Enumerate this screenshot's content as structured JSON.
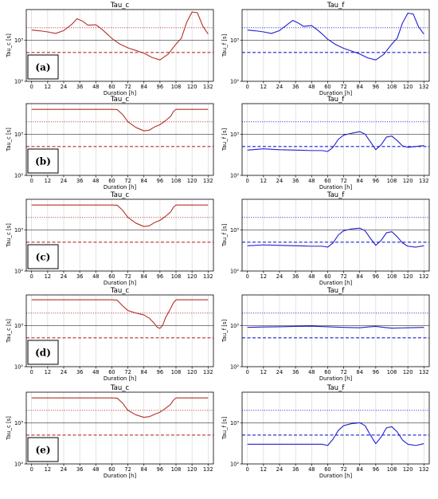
{
  "colors": {
    "tau_c": "#b5312a",
    "tau_f": "#1f1fd0",
    "grid": "#d0d0d0",
    "refline": "#000000"
  },
  "chart_data": [
    {
      "panel_label": "(a)",
      "title": "Tau_c",
      "type": "line",
      "xlabel": "Duration [h]",
      "ylabel": "Tau_c [s]",
      "xlim": [
        -4,
        136
      ],
      "ylim": [
        100,
        5500
      ],
      "y_scale": "log",
      "x_ticks": [
        0,
        12,
        24,
        36,
        48,
        60,
        72,
        84,
        96,
        108,
        120,
        132
      ],
      "y_ticks": [
        {
          "value": 100,
          "label": "10²"
        },
        {
          "value": 1000,
          "label": "10³"
        }
      ],
      "hlines": [
        {
          "value": 2000,
          "style": "dotted"
        },
        {
          "value": 500,
          "style": "dashed"
        },
        {
          "value": 1000,
          "style": "solid-thin"
        }
      ],
      "series": [
        {
          "x": [
            0,
            6,
            12,
            18,
            24,
            30,
            34,
            38,
            42,
            48,
            52,
            56,
            60,
            66,
            72,
            78,
            84,
            90,
            96,
            102,
            108,
            112,
            116,
            120,
            124,
            128,
            132
          ],
          "y": [
            1750,
            1680,
            1580,
            1450,
            1700,
            2400,
            3300,
            2900,
            2300,
            2350,
            1900,
            1450,
            1100,
            800,
            650,
            560,
            480,
            380,
            330,
            450,
            800,
            1100,
            2700,
            4800,
            4600,
            2200,
            1400
          ]
        }
      ]
    },
    {
      "panel_label": "",
      "title": "Tau_f",
      "type": "line",
      "xlabel": "Duration [h]",
      "ylabel": "Tau_f [s]",
      "xlim": [
        -4,
        136
      ],
      "ylim": [
        100,
        5500
      ],
      "y_scale": "log",
      "x_ticks": [
        0,
        12,
        24,
        36,
        48,
        60,
        72,
        84,
        96,
        108,
        120,
        132
      ],
      "y_ticks": [
        {
          "value": 100,
          "label": "10²"
        },
        {
          "value": 1000,
          "label": "10³"
        }
      ],
      "hlines": [
        {
          "value": 2000,
          "style": "dotted"
        },
        {
          "value": 500,
          "style": "dashed"
        },
        {
          "value": 1000,
          "style": "solid-thin"
        }
      ],
      "series": [
        {
          "x": [
            0,
            6,
            12,
            18,
            24,
            30,
            34,
            38,
            42,
            48,
            52,
            56,
            60,
            66,
            72,
            78,
            84,
            90,
            96,
            102,
            108,
            112,
            116,
            120,
            124,
            128,
            132
          ],
          "y": [
            1750,
            1680,
            1580,
            1450,
            1700,
            2400,
            3000,
            2600,
            2150,
            2250,
            1800,
            1400,
            1050,
            780,
            630,
            540,
            460,
            370,
            330,
            450,
            800,
            1100,
            2600,
            4500,
            4300,
            2100,
            1400
          ]
        }
      ]
    },
    {
      "panel_label": "(b)",
      "title": "Tau_c",
      "type": "line",
      "xlabel": "Duration [h]",
      "ylabel": "Tau_c [s]",
      "xlim": [
        -4,
        136
      ],
      "ylim": [
        100,
        5500
      ],
      "y_scale": "log",
      "x_ticks": [
        0,
        12,
        24,
        36,
        48,
        60,
        72,
        84,
        96,
        108,
        120,
        132
      ],
      "y_ticks": [
        {
          "value": 100,
          "label": "10²"
        },
        {
          "value": 1000,
          "label": "10³"
        }
      ],
      "hlines": [
        {
          "value": 2000,
          "style": "dotted"
        },
        {
          "value": 500,
          "style": "dashed"
        },
        {
          "value": 1000,
          "style": "solid-thin"
        }
      ],
      "series": [
        {
          "x": [
            0,
            30,
            60,
            64,
            68,
            72,
            78,
            84,
            88,
            92,
            96,
            100,
            104,
            106,
            108,
            120,
            132
          ],
          "y": [
            4000,
            4000,
            4000,
            3950,
            3000,
            2000,
            1450,
            1200,
            1250,
            1500,
            1700,
            2100,
            2700,
            3500,
            4000,
            4000,
            4000
          ]
        }
      ]
    },
    {
      "panel_label": "",
      "title": "Tau_f",
      "type": "line",
      "xlabel": "Duration [h]",
      "ylabel": "Tau_f [s]",
      "xlim": [
        -4,
        136
      ],
      "ylim": [
        100,
        5500
      ],
      "y_scale": "log",
      "x_ticks": [
        0,
        12,
        24,
        36,
        48,
        60,
        72,
        84,
        96,
        108,
        120,
        132
      ],
      "y_ticks": [
        {
          "value": 100,
          "label": "10²"
        },
        {
          "value": 1000,
          "label": "10³"
        }
      ],
      "hlines": [
        {
          "value": 2000,
          "style": "dotted"
        },
        {
          "value": 500,
          "style": "dashed"
        },
        {
          "value": 1000,
          "style": "solid-thin"
        }
      ],
      "series": [
        {
          "x": [
            0,
            12,
            24,
            36,
            48,
            56,
            60,
            64,
            68,
            72,
            78,
            84,
            88,
            92,
            96,
            100,
            104,
            108,
            112,
            116,
            120,
            126,
            132
          ],
          "y": [
            410,
            440,
            420,
            410,
            400,
            400,
            380,
            480,
            750,
            950,
            1050,
            1150,
            1000,
            650,
            420,
            550,
            850,
            900,
            700,
            520,
            480,
            500,
            530
          ]
        }
      ]
    },
    {
      "panel_label": "(c)",
      "title": "Tau_c",
      "type": "line",
      "xlabel": "Duration [h]",
      "ylabel": "Tau_c [s]",
      "xlim": [
        -4,
        136
      ],
      "ylim": [
        100,
        5500
      ],
      "y_scale": "log",
      "x_ticks": [
        0,
        12,
        24,
        36,
        48,
        60,
        72,
        84,
        96,
        108,
        120,
        132
      ],
      "y_ticks": [
        {
          "value": 100,
          "label": "10²"
        },
        {
          "value": 1000,
          "label": "10³"
        }
      ],
      "hlines": [
        {
          "value": 2000,
          "style": "dotted"
        },
        {
          "value": 500,
          "style": "dashed"
        },
        {
          "value": 1000,
          "style": "solid-thin"
        }
      ],
      "series": [
        {
          "x": [
            0,
            30,
            60,
            64,
            68,
            72,
            78,
            84,
            88,
            92,
            96,
            100,
            104,
            106,
            108,
            120,
            132
          ],
          "y": [
            4000,
            4000,
            4000,
            3950,
            3000,
            2000,
            1450,
            1200,
            1250,
            1500,
            1700,
            2100,
            2700,
            3500,
            4000,
            4000,
            4000
          ]
        }
      ]
    },
    {
      "panel_label": "",
      "title": "Tau_f",
      "type": "line",
      "xlabel": "Duration [h]",
      "ylabel": "Tau_f [s]",
      "xlim": [
        -4,
        136
      ],
      "ylim": [
        100,
        5500
      ],
      "y_scale": "log",
      "x_ticks": [
        0,
        12,
        24,
        36,
        48,
        60,
        72,
        84,
        96,
        108,
        120,
        132
      ],
      "y_ticks": [
        {
          "value": 100,
          "label": "10²"
        },
        {
          "value": 1000,
          "label": "10³"
        }
      ],
      "hlines": [
        {
          "value": 2000,
          "style": "dotted"
        },
        {
          "value": 500,
          "style": "dashed"
        },
        {
          "value": 1000,
          "style": "solid-thin"
        }
      ],
      "series": [
        {
          "x": [
            0,
            12,
            24,
            36,
            48,
            56,
            60,
            64,
            68,
            72,
            78,
            84,
            88,
            92,
            96,
            100,
            104,
            108,
            112,
            116,
            120,
            126,
            132
          ],
          "y": [
            410,
            430,
            420,
            410,
            400,
            400,
            380,
            480,
            750,
            950,
            1050,
            1100,
            950,
            620,
            420,
            550,
            850,
            900,
            680,
            480,
            400,
            380,
            410
          ]
        }
      ]
    },
    {
      "panel_label": "(d)",
      "title": "Tau_c",
      "type": "line",
      "xlabel": "Duration [h]",
      "ylabel": "Tau_c [s]",
      "xlim": [
        -4,
        136
      ],
      "ylim": [
        100,
        5500
      ],
      "y_scale": "log",
      "x_ticks": [
        0,
        12,
        24,
        36,
        48,
        60,
        72,
        84,
        96,
        108,
        120,
        132
      ],
      "y_ticks": [
        {
          "value": 100,
          "label": "10²"
        },
        {
          "value": 1000,
          "label": "10³"
        }
      ],
      "hlines": [
        {
          "value": 2000,
          "style": "dotted"
        },
        {
          "value": 500,
          "style": "dashed"
        },
        {
          "value": 1000,
          "style": "solid-thin"
        }
      ],
      "series": [
        {
          "x": [
            0,
            30,
            60,
            64,
            68,
            72,
            78,
            84,
            88,
            92,
            94,
            96,
            98,
            100,
            104,
            106,
            108,
            120,
            132
          ],
          "y": [
            4200,
            4200,
            4200,
            4100,
            3000,
            2300,
            2000,
            1800,
            1500,
            1100,
            900,
            850,
            1000,
            1500,
            2600,
            3500,
            4200,
            4200,
            4200
          ]
        }
      ]
    },
    {
      "panel_label": "",
      "title": "Tau_f",
      "type": "line",
      "xlabel": "Duration [h]",
      "ylabel": "Tau_f [s]",
      "xlim": [
        -4,
        136
      ],
      "ylim": [
        100,
        5500
      ],
      "y_scale": "log",
      "x_ticks": [
        0,
        12,
        24,
        36,
        48,
        60,
        72,
        84,
        96,
        108,
        120,
        132
      ],
      "y_ticks": [
        {
          "value": 100,
          "label": "10²"
        },
        {
          "value": 1000,
          "label": "10³"
        }
      ],
      "hlines": [
        {
          "value": 2000,
          "style": "dotted"
        },
        {
          "value": 500,
          "style": "dashed"
        },
        {
          "value": 1000,
          "style": "solid-thin"
        }
      ],
      "series": [
        {
          "x": [
            0,
            12,
            24,
            36,
            48,
            60,
            72,
            84,
            90,
            96,
            102,
            108,
            120,
            132
          ],
          "y": [
            900,
            920,
            930,
            950,
            960,
            930,
            900,
            880,
            920,
            950,
            900,
            860,
            880,
            900
          ]
        }
      ]
    },
    {
      "panel_label": "(e)",
      "title": "Tau_c",
      "type": "line",
      "xlabel": "Duration [h]",
      "ylabel": "Tau_c [s]",
      "xlim": [
        -4,
        136
      ],
      "ylim": [
        100,
        5500
      ],
      "y_scale": "log",
      "x_ticks": [
        0,
        12,
        24,
        36,
        48,
        60,
        72,
        84,
        96,
        108,
        120,
        132
      ],
      "y_ticks": [
        {
          "value": 100,
          "label": "10²"
        },
        {
          "value": 1000,
          "label": "10³"
        }
      ],
      "hlines": [
        {
          "value": 2000,
          "style": "dotted"
        },
        {
          "value": 500,
          "style": "dashed"
        },
        {
          "value": 1000,
          "style": "solid-thin"
        }
      ],
      "series": [
        {
          "x": [
            0,
            30,
            60,
            64,
            68,
            72,
            78,
            84,
            88,
            92,
            96,
            100,
            104,
            106,
            108,
            120,
            132
          ],
          "y": [
            4000,
            4000,
            4000,
            3950,
            3000,
            2000,
            1550,
            1350,
            1400,
            1600,
            1800,
            2200,
            2800,
            3500,
            4000,
            4000,
            4000
          ]
        }
      ]
    },
    {
      "panel_label": "",
      "title": "Tau_f",
      "type": "line",
      "xlabel": "Duration [h]",
      "ylabel": "Tau_f [s]",
      "xlim": [
        -4,
        136
      ],
      "ylim": [
        100,
        5500
      ],
      "y_scale": "log",
      "x_ticks": [
        0,
        12,
        24,
        36,
        48,
        60,
        72,
        84,
        96,
        108,
        120,
        132
      ],
      "y_ticks": [
        {
          "value": 100,
          "label": "10²"
        },
        {
          "value": 1000,
          "label": "10³"
        }
      ],
      "hlines": [
        {
          "value": 2000,
          "style": "dotted"
        },
        {
          "value": 500,
          "style": "dashed"
        },
        {
          "value": 1000,
          "style": "solid-thin"
        }
      ],
      "series": [
        {
          "x": [
            0,
            12,
            24,
            36,
            48,
            56,
            60,
            64,
            68,
            72,
            78,
            84,
            88,
            92,
            96,
            100,
            104,
            108,
            112,
            116,
            120,
            126,
            132
          ],
          "y": [
            300,
            300,
            300,
            300,
            300,
            300,
            280,
            400,
            650,
            850,
            950,
            1000,
            850,
            500,
            310,
            450,
            750,
            800,
            600,
            380,
            300,
            280,
            310
          ]
        }
      ]
    }
  ]
}
